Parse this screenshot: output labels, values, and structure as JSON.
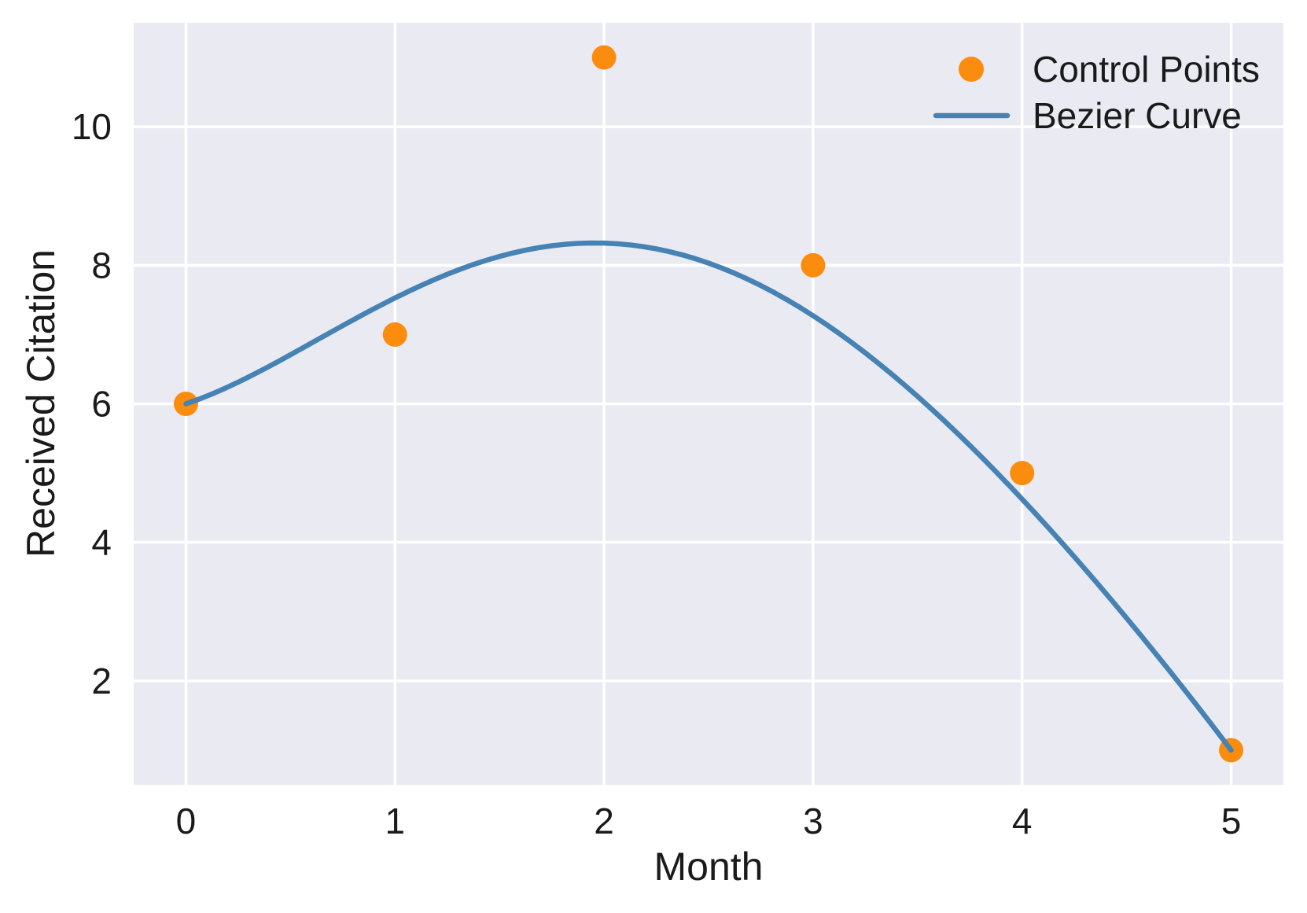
{
  "figure": {
    "background": "#ffffff",
    "plot_background": "#eaeaf2",
    "grid_color": "#ffffff",
    "text_color": "#1a1a1a"
  },
  "chart_data": {
    "type": "scatter+line",
    "title": "",
    "xlabel": "Month",
    "ylabel": "Received Citation",
    "xlim": [
      -0.25,
      5.25
    ],
    "ylim": [
      0.5,
      11.5
    ],
    "grid": true,
    "xticks": {
      "values": [
        0,
        1,
        2,
        3,
        4,
        5
      ],
      "labels": [
        "0",
        "1",
        "2",
        "3",
        "4",
        "5"
      ]
    },
    "yticks": {
      "values": [
        2,
        4,
        6,
        8,
        10
      ],
      "labels": [
        "2",
        "4",
        "6",
        "8",
        "10"
      ]
    },
    "series": [
      {
        "name": "Control Points",
        "type": "scatter",
        "color": "#fb8c0d",
        "marker": "circle",
        "x": [
          0,
          1,
          2,
          3,
          4,
          5
        ],
        "y": [
          6,
          7,
          11,
          8,
          5,
          1
        ]
      },
      {
        "name": "Bezier Curve",
        "type": "bezier",
        "color": "#4682b4",
        "control_points_x": [
          0,
          1,
          2,
          3,
          4,
          5
        ],
        "control_points_y": [
          6,
          7,
          11,
          8,
          5,
          1
        ],
        "start": [
          0,
          6
        ],
        "end": [
          5,
          1
        ],
        "peak": [
          2.1,
          8.33
        ]
      }
    ],
    "legend": {
      "position": "upper right",
      "frame": false,
      "entries": [
        {
          "label": "Control Points",
          "type": "marker",
          "color": "#fb8c0d"
        },
        {
          "label": "Bezier Curve",
          "type": "line",
          "color": "#4682b4"
        }
      ]
    }
  }
}
